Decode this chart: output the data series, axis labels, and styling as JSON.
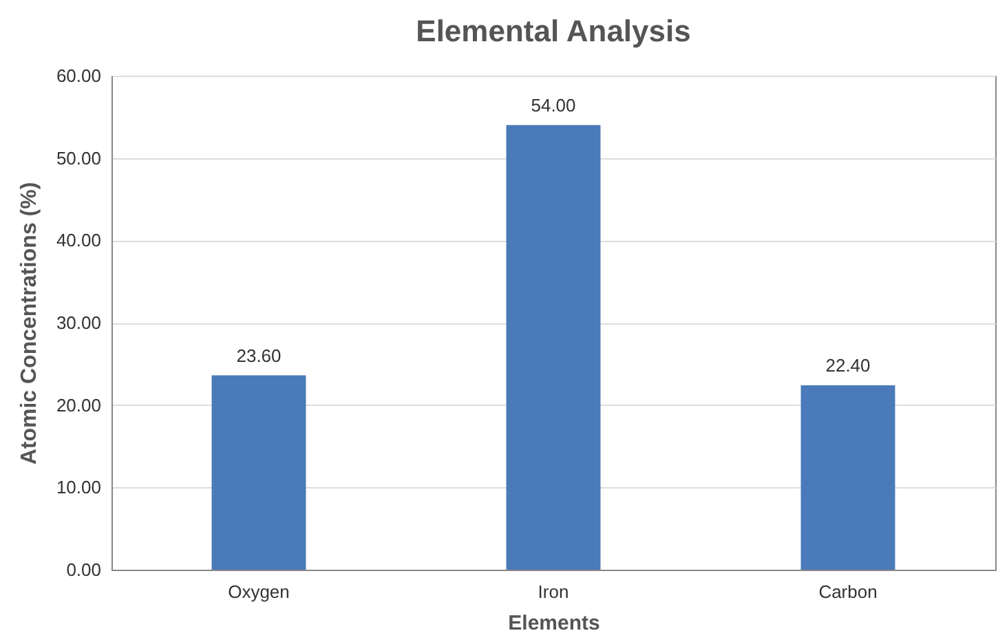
{
  "chart_data": {
    "type": "bar",
    "title": "Elemental Analysis",
    "xlabel": "Elements",
    "ylabel": "Atomic Concentrations (%)",
    "categories": [
      "Oxygen",
      "Iron",
      "Carbon"
    ],
    "values": [
      23.6,
      54.0,
      22.4
    ],
    "value_labels": [
      "23.60",
      "54.00",
      "22.40"
    ],
    "color": "#4a7ab9",
    "ylim": [
      0,
      60
    ],
    "yticks": [
      {
        "value": 0,
        "label": "0.00"
      },
      {
        "value": 10,
        "label": "10.00"
      },
      {
        "value": 20,
        "label": "20.00"
      },
      {
        "value": 30,
        "label": "30.00"
      },
      {
        "value": 40,
        "label": "40.00"
      },
      {
        "value": 50,
        "label": "50.00"
      },
      {
        "value": 60,
        "label": "60.00"
      }
    ],
    "grid": "y"
  }
}
